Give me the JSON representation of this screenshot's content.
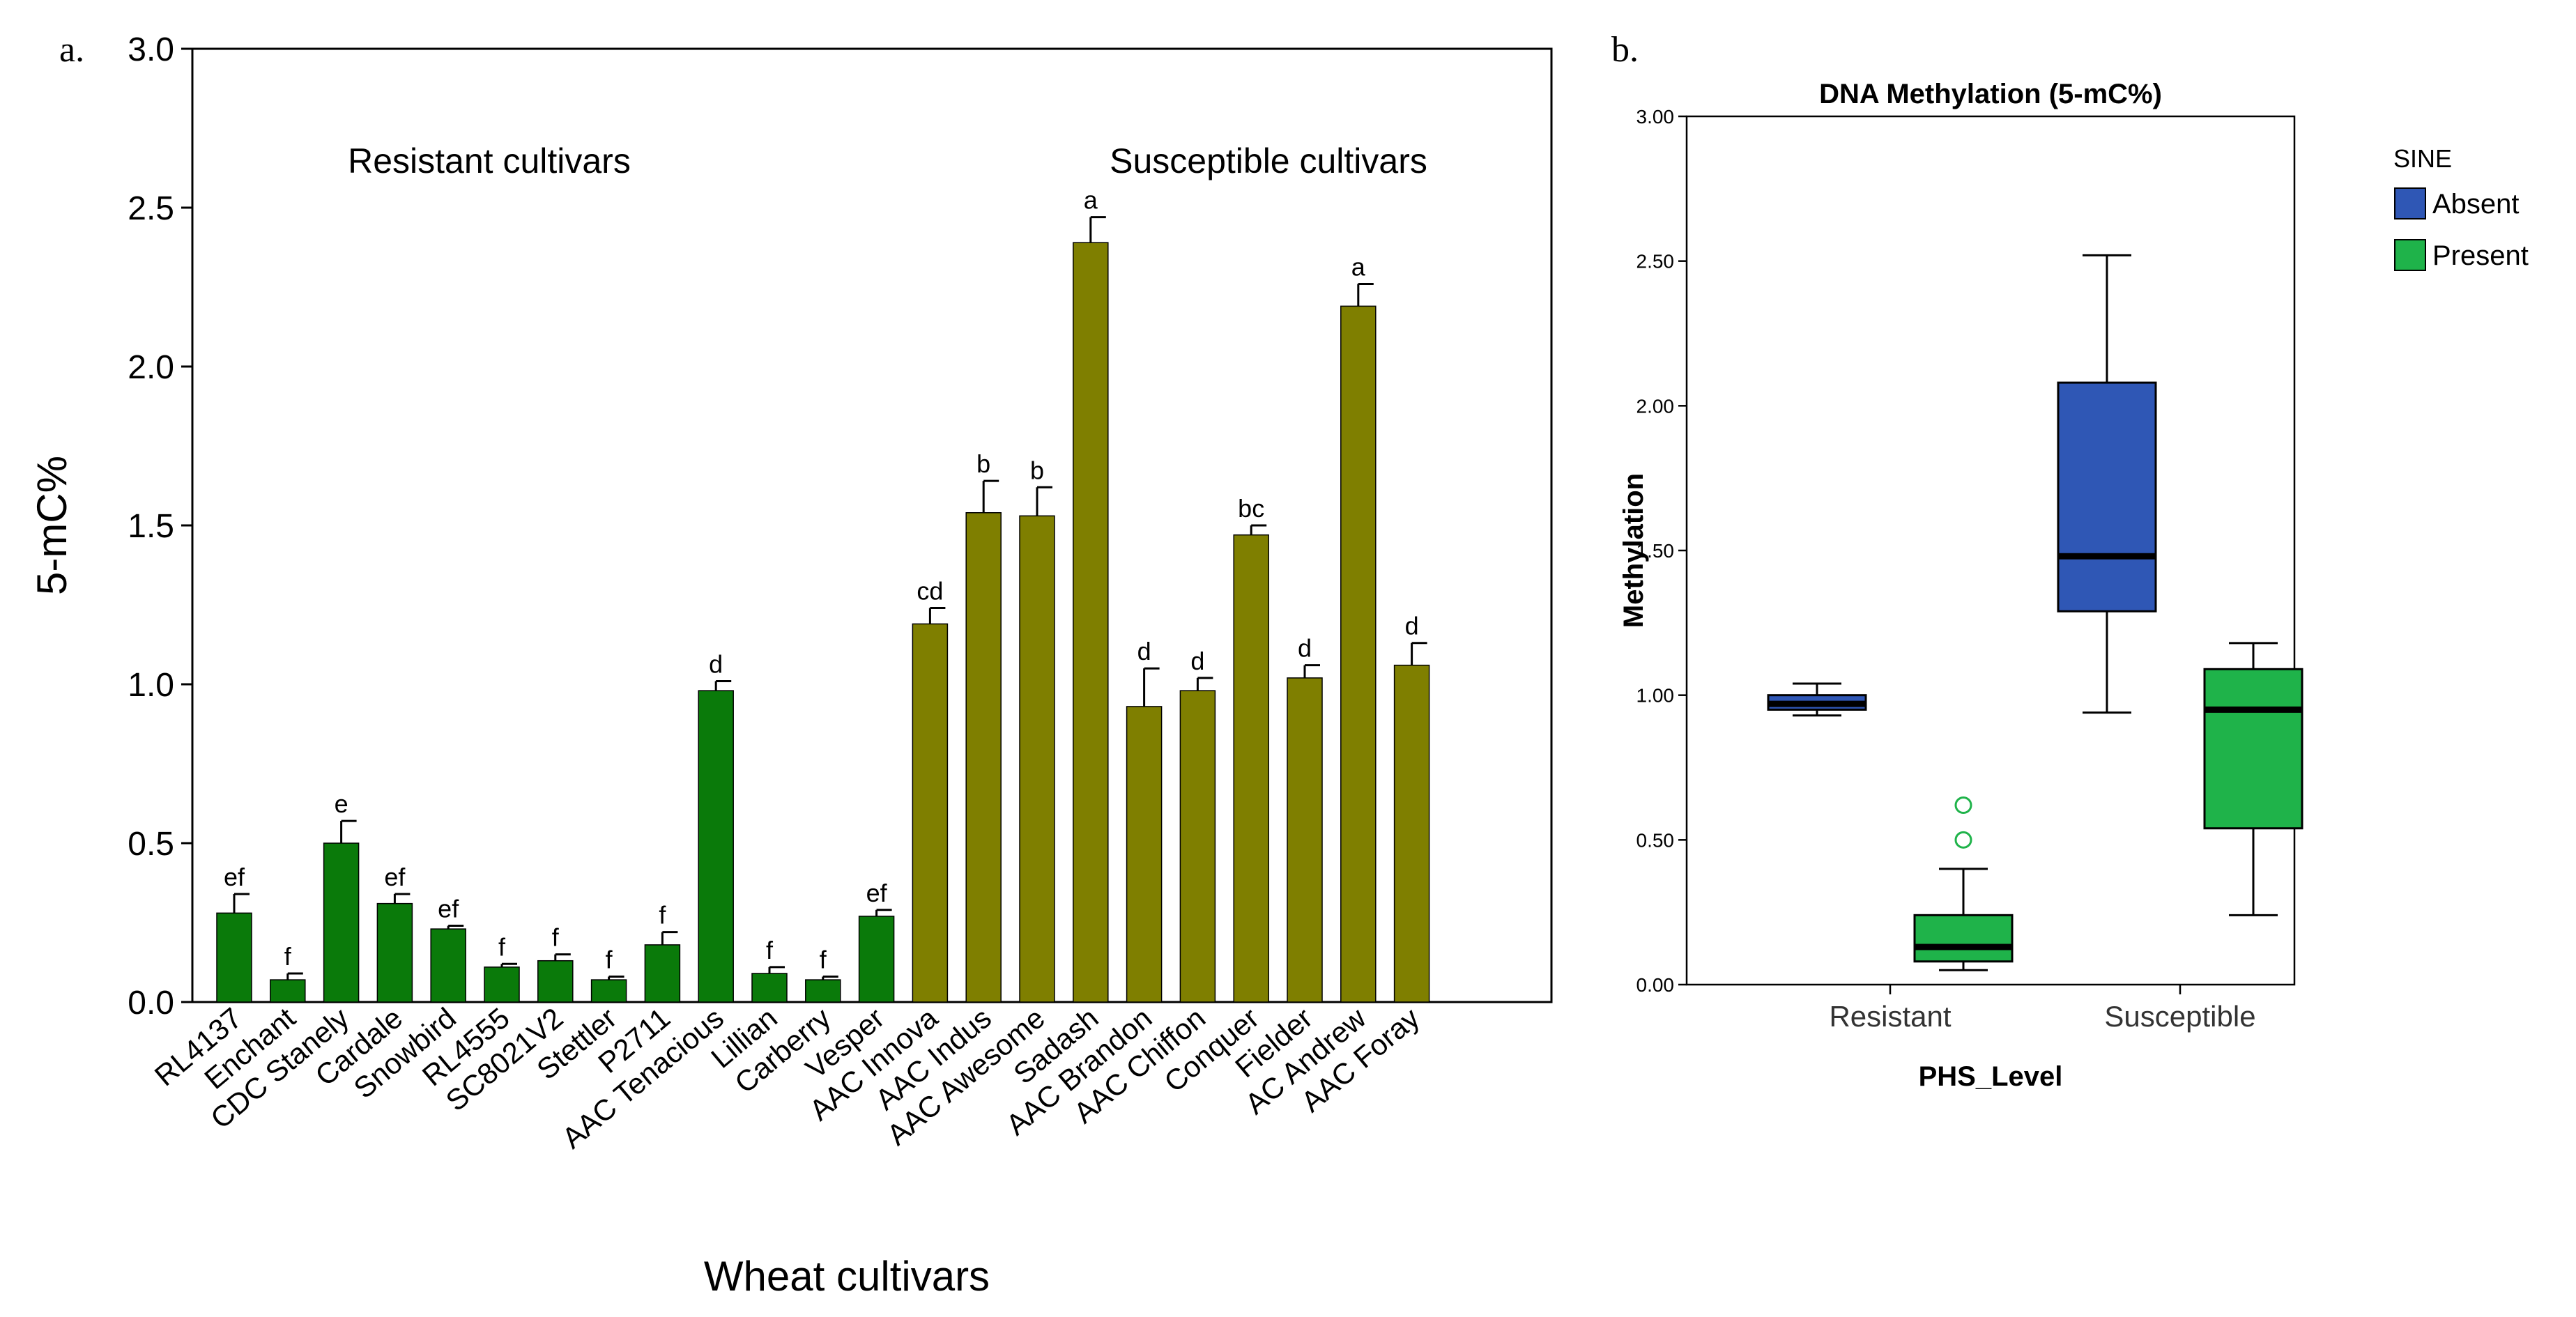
{
  "panels": {
    "a_label": "a.",
    "b_label": "b."
  },
  "chart_data": [
    {
      "type": "bar",
      "title": "",
      "xlabel": "Wheat cultivars",
      "ylabel": "5-mC%",
      "ylim": [
        0,
        3.0
      ],
      "yticks": [
        "0.0",
        "0.5",
        "1.0",
        "1.5",
        "2.0",
        "2.5",
        "3.0"
      ],
      "annotations": [
        "Resistant cultivars",
        "Susceptible cultivars"
      ],
      "colors": {
        "resistant": "#0a7a0a",
        "susceptible": "#7f7f00"
      },
      "grid": false,
      "categories": [
        "RL4137",
        "Enchant",
        "CDC Stanely",
        "Cardale",
        "Snowbird",
        "RL4555",
        "SC8021V2",
        "Stettler",
        "P2711",
        "AAC Tenacious",
        "Lillian",
        "Carberry",
        "Vesper",
        "AAC Innova",
        "AAC Indus",
        "AAC Awesome",
        "Sadash",
        "AAC Brandon",
        "AAC Chiffon",
        "Conquer",
        "Fielder",
        "AC Andrew",
        "AAC Foray"
      ],
      "group": [
        "resistant",
        "resistant",
        "resistant",
        "resistant",
        "resistant",
        "resistant",
        "resistant",
        "resistant",
        "resistant",
        "resistant",
        "resistant",
        "resistant",
        "resistant",
        "susceptible",
        "susceptible",
        "susceptible",
        "susceptible",
        "susceptible",
        "susceptible",
        "susceptible",
        "susceptible",
        "susceptible",
        "susceptible"
      ],
      "values": [
        0.28,
        0.07,
        0.5,
        0.31,
        0.23,
        0.11,
        0.13,
        0.07,
        0.18,
        0.98,
        0.09,
        0.07,
        0.27,
        1.19,
        1.54,
        1.53,
        2.39,
        0.93,
        0.98,
        1.47,
        1.02,
        2.19,
        1.06
      ],
      "errors": [
        0.06,
        0.02,
        0.07,
        0.03,
        0.01,
        0.01,
        0.02,
        0.01,
        0.04,
        0.03,
        0.02,
        0.01,
        0.02,
        0.05,
        0.1,
        0.09,
        0.08,
        0.12,
        0.04,
        0.03,
        0.04,
        0.07,
        0.07
      ],
      "letters": [
        "ef",
        "f",
        "e",
        "ef",
        "ef",
        "f",
        "f",
        "f",
        "f",
        "d",
        "f",
        "f",
        "ef",
        "cd",
        "b",
        "b",
        "a",
        "d",
        "d",
        "bc",
        "d",
        "a",
        "d"
      ]
    },
    {
      "type": "box",
      "title": "DNA Methylation (5-mC%)",
      "xlabel": "PHS_Level",
      "ylabel": "Methylation",
      "ylim": [
        0,
        3.0
      ],
      "yticks": [
        "0.00",
        "0.50",
        "1.00",
        "1.50",
        "2.00",
        "2.50",
        "3.00"
      ],
      "categories": [
        "Resistant",
        "Susceptible"
      ],
      "legend": {
        "title": "SINE",
        "position": "right"
      },
      "series": [
        {
          "name": "Absent",
          "color": "#2f57b5",
          "boxes": [
            {
              "whisker_low": 0.93,
              "q1": 0.95,
              "median": 0.97,
              "q3": 1.0,
              "whisker_high": 1.04,
              "outliers": []
            },
            {
              "whisker_low": 0.94,
              "q1": 1.29,
              "median": 1.48,
              "q3": 2.08,
              "whisker_high": 2.52,
              "outliers": []
            }
          ]
        },
        {
          "name": "Present",
          "color": "#1fb34a",
          "boxes": [
            {
              "whisker_low": 0.05,
              "q1": 0.08,
              "median": 0.13,
              "q3": 0.24,
              "whisker_high": 0.4,
              "outliers": [
                0.5,
                0.62
              ]
            },
            {
              "whisker_low": 0.24,
              "q1": 0.54,
              "median": 0.95,
              "q3": 1.09,
              "whisker_high": 1.18,
              "outliers": []
            }
          ]
        }
      ]
    }
  ]
}
